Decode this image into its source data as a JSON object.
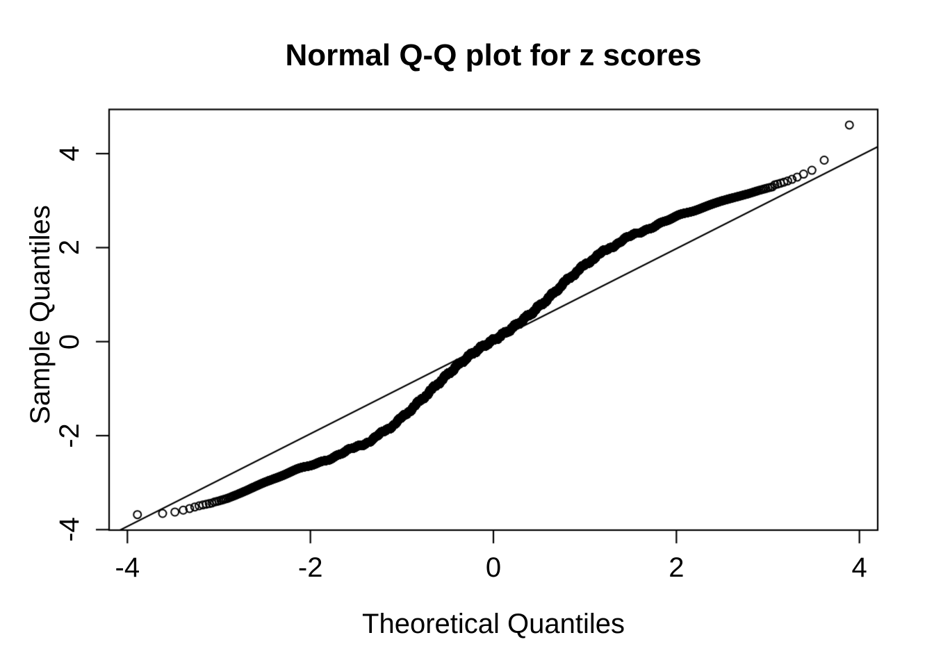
{
  "chart_data": {
    "type": "scatter",
    "subtype": "normal-qq-plot",
    "title": "Normal Q-Q plot for z scores",
    "xlabel": "Theoretical Quantiles",
    "ylabel": "Sample Quantiles",
    "xlim": [
      -4.2,
      4.2
    ],
    "ylim": [
      -4.01,
      4.94
    ],
    "x_ticks": [
      -4,
      -2,
      0,
      2,
      4
    ],
    "y_ticks": [
      -4,
      -2,
      0,
      2,
      4
    ],
    "grid": false,
    "legend": null,
    "background_color": "#ffffff",
    "foreground_color": "#000000",
    "n_points": 10000,
    "point_style": {
      "shape": "open-circle",
      "radius_px": 5.5,
      "stroke_px": 2,
      "color": "#000000"
    },
    "reference_line": {
      "slope": 0.985,
      "intercept": 0.01,
      "stroke_px": 2.2,
      "color": "#000000"
    },
    "sample_vs_theoretical_curve": [
      [
        -3.891,
        -3.68
      ],
      [
        -3.615,
        -3.655
      ],
      [
        -3.48,
        -3.625
      ],
      [
        -3.39,
        -3.585
      ],
      [
        -3.32,
        -3.55
      ],
      [
        -3.26,
        -3.515
      ],
      [
        -3.21,
        -3.49
      ],
      [
        -3.17,
        -3.47
      ],
      [
        -3.13,
        -3.455
      ],
      [
        -3.09,
        -3.44
      ],
      [
        -3.0,
        -3.4
      ],
      [
        -2.9,
        -3.345
      ],
      [
        -2.8,
        -3.27
      ],
      [
        -2.7,
        -3.19
      ],
      [
        -2.6,
        -3.1
      ],
      [
        -2.5,
        -3.01
      ],
      [
        -2.4,
        -2.93
      ],
      [
        -2.3,
        -2.855
      ],
      [
        -2.2,
        -2.78
      ],
      [
        -2.1,
        -2.705
      ],
      [
        -2.0,
        -2.63
      ],
      [
        -1.9,
        -2.56
      ],
      [
        -1.8,
        -2.485
      ],
      [
        -1.7,
        -2.41
      ],
      [
        -1.6,
        -2.33
      ],
      [
        -1.5,
        -2.25
      ],
      [
        -1.4,
        -2.16
      ],
      [
        -1.3,
        -2.05
      ],
      [
        -1.2,
        -1.92
      ],
      [
        -1.1,
        -1.78
      ],
      [
        -1.0,
        -1.62
      ],
      [
        -0.9,
        -1.44
      ],
      [
        -0.8,
        -1.26
      ],
      [
        -0.7,
        -1.07
      ],
      [
        -0.6,
        -0.88
      ],
      [
        -0.5,
        -0.7
      ],
      [
        -0.4,
        -0.52
      ],
      [
        -0.3,
        -0.36
      ],
      [
        -0.2,
        -0.21
      ],
      [
        -0.1,
        -0.08
      ],
      [
        0.0,
        0.03
      ],
      [
        0.1,
        0.15
      ],
      [
        0.2,
        0.28
      ],
      [
        0.3,
        0.43
      ],
      [
        0.4,
        0.58
      ],
      [
        0.5,
        0.75
      ],
      [
        0.6,
        0.92
      ],
      [
        0.7,
        1.11
      ],
      [
        0.8,
        1.3
      ],
      [
        0.9,
        1.47
      ],
      [
        1.0,
        1.63
      ],
      [
        1.1,
        1.78
      ],
      [
        1.2,
        1.91
      ],
      [
        1.3,
        2.03
      ],
      [
        1.4,
        2.14
      ],
      [
        1.5,
        2.24
      ],
      [
        1.6,
        2.33
      ],
      [
        1.7,
        2.42
      ],
      [
        1.8,
        2.5
      ],
      [
        1.9,
        2.575
      ],
      [
        2.0,
        2.645
      ],
      [
        2.1,
        2.715
      ],
      [
        2.2,
        2.785
      ],
      [
        2.3,
        2.855
      ],
      [
        2.4,
        2.925
      ],
      [
        2.5,
        2.995
      ],
      [
        2.6,
        3.06
      ],
      [
        2.7,
        3.12
      ],
      [
        2.8,
        3.18
      ],
      [
        2.9,
        3.245
      ],
      [
        3.0,
        3.3
      ],
      [
        3.09,
        3.345
      ],
      [
        3.13,
        3.365
      ],
      [
        3.17,
        3.39
      ],
      [
        3.21,
        3.415
      ],
      [
        3.26,
        3.45
      ],
      [
        3.32,
        3.5
      ],
      [
        3.39,
        3.565
      ],
      [
        3.48,
        3.645
      ],
      [
        3.615,
        3.86
      ],
      [
        3.891,
        4.61
      ]
    ]
  }
}
